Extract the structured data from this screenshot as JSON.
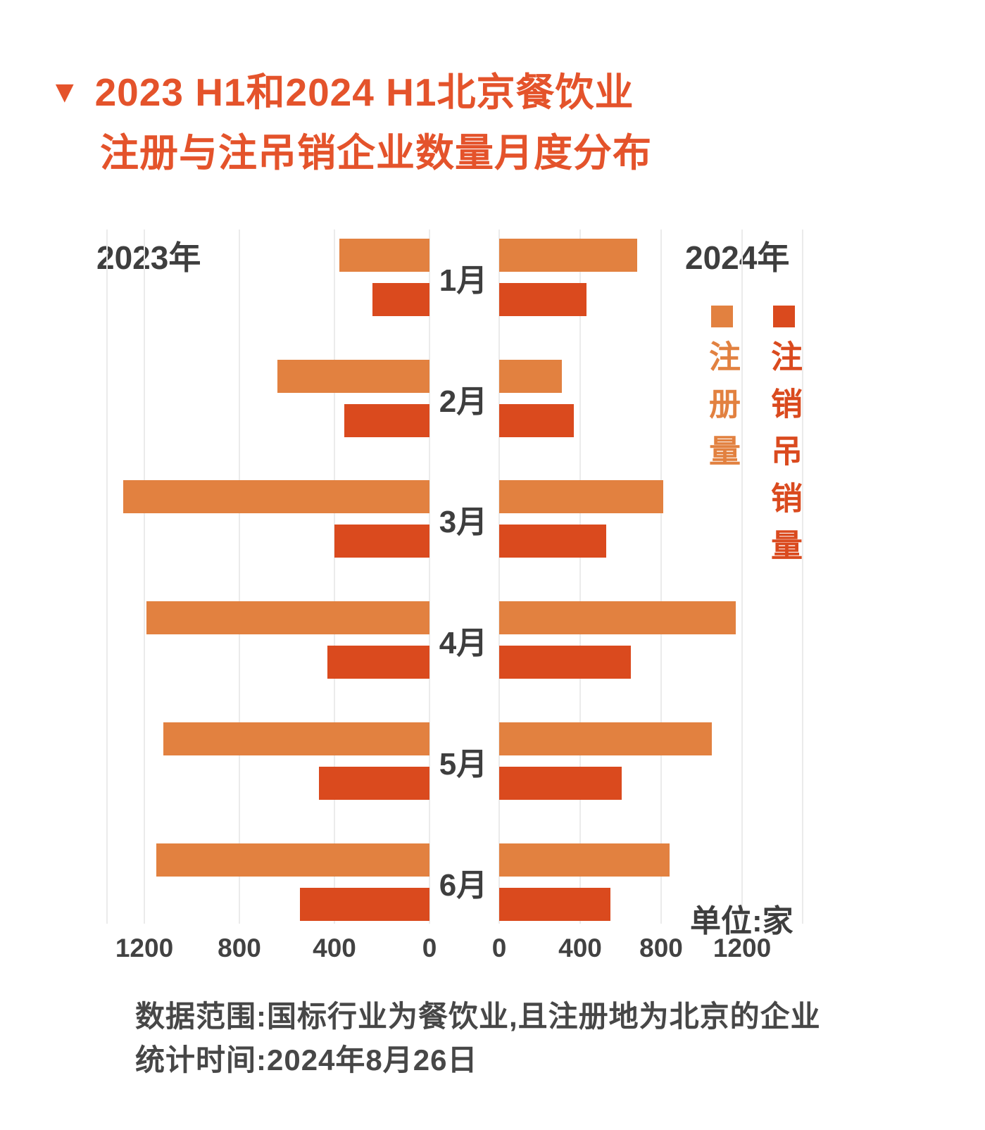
{
  "title": {
    "marker": "▼",
    "line1": "2023 H1和2024 H1北京餐饮业",
    "line2": "注册与注吊销企业数量月度分布"
  },
  "colors": {
    "registration": "#E28140",
    "deregistration": "#DA4A1E",
    "title": "#E4532B",
    "text_dark": "#3E3E3E",
    "gridline": "#EBEBEB"
  },
  "legend": [
    {
      "label": "注册量",
      "color_key": "registration"
    },
    {
      "label": "注销吊销量",
      "color_key": "deregistration"
    }
  ],
  "unit_label": "单位:家",
  "footer": {
    "line1": "数据范围:国标行业为餐饮业,且注册地为北京的企业",
    "line2": "统计时间:2024年8月26日"
  },
  "chart_data": {
    "type": "bar",
    "orientation": "horizontal-diverging",
    "title": "2023 H1和2024 H1北京餐饮业注册与注吊销企业数量月度分布",
    "unit": "家",
    "categories": [
      "1月",
      "2月",
      "3月",
      "4月",
      "5月",
      "6月"
    ],
    "grid": true,
    "panels": [
      {
        "side": "left",
        "year_label": "2023年",
        "ticks": [
          0,
          400,
          800,
          1200
        ],
        "axis_max": 1360,
        "series": [
          {
            "name": "注册量",
            "values": [
              380,
              640,
              1290,
              1190,
              1120,
              1150
            ]
          },
          {
            "name": "注销吊销量",
            "values": [
              240,
              360,
              400,
              430,
              465,
              545
            ]
          }
        ]
      },
      {
        "side": "right",
        "year_label": "2024年",
        "ticks": [
          0,
          400,
          800,
          1200
        ],
        "axis_max": 1500,
        "series": [
          {
            "name": "注册量",
            "values": [
              680,
              310,
              810,
              1170,
              1050,
              840
            ]
          },
          {
            "name": "注销吊销量",
            "values": [
              430,
              370,
              530,
              650,
              605,
              550
            ]
          }
        ]
      }
    ]
  }
}
